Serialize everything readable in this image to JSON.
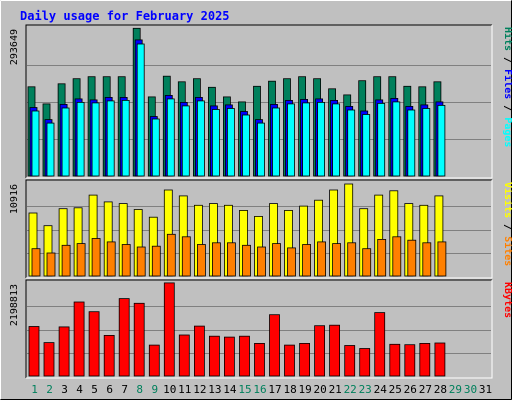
{
  "chart_data": {
    "type": "bar",
    "title": "Daily usage for February 2025",
    "categories": [
      "1",
      "2",
      "3",
      "4",
      "5",
      "6",
      "7",
      "8",
      "9",
      "10",
      "11",
      "12",
      "13",
      "14",
      "15",
      "16",
      "17",
      "18",
      "19",
      "20",
      "21",
      "22",
      "23",
      "24",
      "25",
      "26",
      "27",
      "28",
      "29",
      "30",
      "31"
    ],
    "weekend_days": [
      "1",
      "2",
      "8",
      "9",
      "15",
      "16",
      "22",
      "23",
      "29",
      "30"
    ],
    "panels": [
      {
        "id": "hits-files-pages",
        "ymax_label": "293649",
        "ylim": [
          0,
          293649
        ],
        "series": [
          {
            "name": "Hits",
            "color": "#00805c",
            "values": [
              177000,
              143000,
              183000,
              193000,
              197000,
              197000,
              197000,
              293000,
              157000,
              198000,
              187000,
              193000,
              176000,
              157000,
              147000,
              178000,
              188000,
              193000,
              197000,
              193000,
              173000,
              161000,
              189000,
              197000,
              197000,
              178000,
              177000,
              187000,
              0,
              0,
              0
            ]
          },
          {
            "name": "Files",
            "color": "#0000ff",
            "values": [
              136000,
              112000,
              142000,
              153000,
              151000,
              156000,
              156000,
              270000,
              118000,
              160000,
              146000,
              156000,
              139000,
              141000,
              128000,
              112000,
              142000,
              150000,
              152000,
              153000,
              150000,
              138000,
              129000,
              151000,
              154000,
              138000,
              141000,
              147000,
              0,
              0,
              0
            ]
          },
          {
            "name": "Pages",
            "color": "#00ffff",
            "values": [
              129000,
              105000,
              135000,
              146000,
              145000,
              149000,
              150000,
              262000,
              113000,
              153000,
              139000,
              149000,
              132000,
              134000,
              121000,
              105000,
              135000,
              143000,
              145000,
              146000,
              143000,
              131000,
              122000,
              144000,
              147000,
              131000,
              134000,
              140000,
              0,
              0,
              0
            ]
          }
        ]
      },
      {
        "id": "visits-sites",
        "ymax_label": "10916",
        "ylim": [
          0,
          10916
        ],
        "series": [
          {
            "name": "Visits",
            "color": "#ffff00",
            "values": [
              7400,
              5900,
              7900,
              8000,
              9500,
              8700,
              8500,
              7800,
              6900,
              10100,
              9400,
              8300,
              8500,
              8300,
              7700,
              7000,
              8500,
              7700,
              8200,
              8900,
              10100,
              10800,
              7900,
              9500,
              10000,
              8500,
              8300,
              9400,
              0,
              0,
              0
            ]
          },
          {
            "name": "Sites",
            "color": "#ff8000",
            "values": [
              3200,
              2700,
              3600,
              3800,
              4400,
              4000,
              3700,
              3400,
              3500,
              4900,
              4600,
              3700,
              3900,
              3900,
              3600,
              3400,
              3800,
              3300,
              3700,
              4000,
              3800,
              3900,
              3200,
              4300,
              4600,
              4200,
              3900,
              4000,
              0,
              0,
              0
            ]
          }
        ]
      },
      {
        "id": "kbytes",
        "ymax_label": "2198813",
        "ylim": [
          0,
          2198813
        ],
        "series": [
          {
            "name": "KBytes",
            "color": "#ff0000",
            "values": [
              1170000,
              790000,
              1160000,
              1750000,
              1520000,
              960000,
              1830000,
              1720000,
              730000,
              2200000,
              970000,
              1180000,
              940000,
              920000,
              940000,
              770000,
              1450000,
              730000,
              770000,
              1190000,
              1200000,
              720000,
              650000,
              1500000,
              750000,
              740000,
              770000,
              780000,
              0,
              0,
              0
            ]
          }
        ]
      }
    ]
  },
  "colors": {
    "title": "#0000ff",
    "panel_bg": "#c0c0c0",
    "gridline": "#808080",
    "weekday_label": "#000000",
    "weekend_label": "#00805c"
  }
}
